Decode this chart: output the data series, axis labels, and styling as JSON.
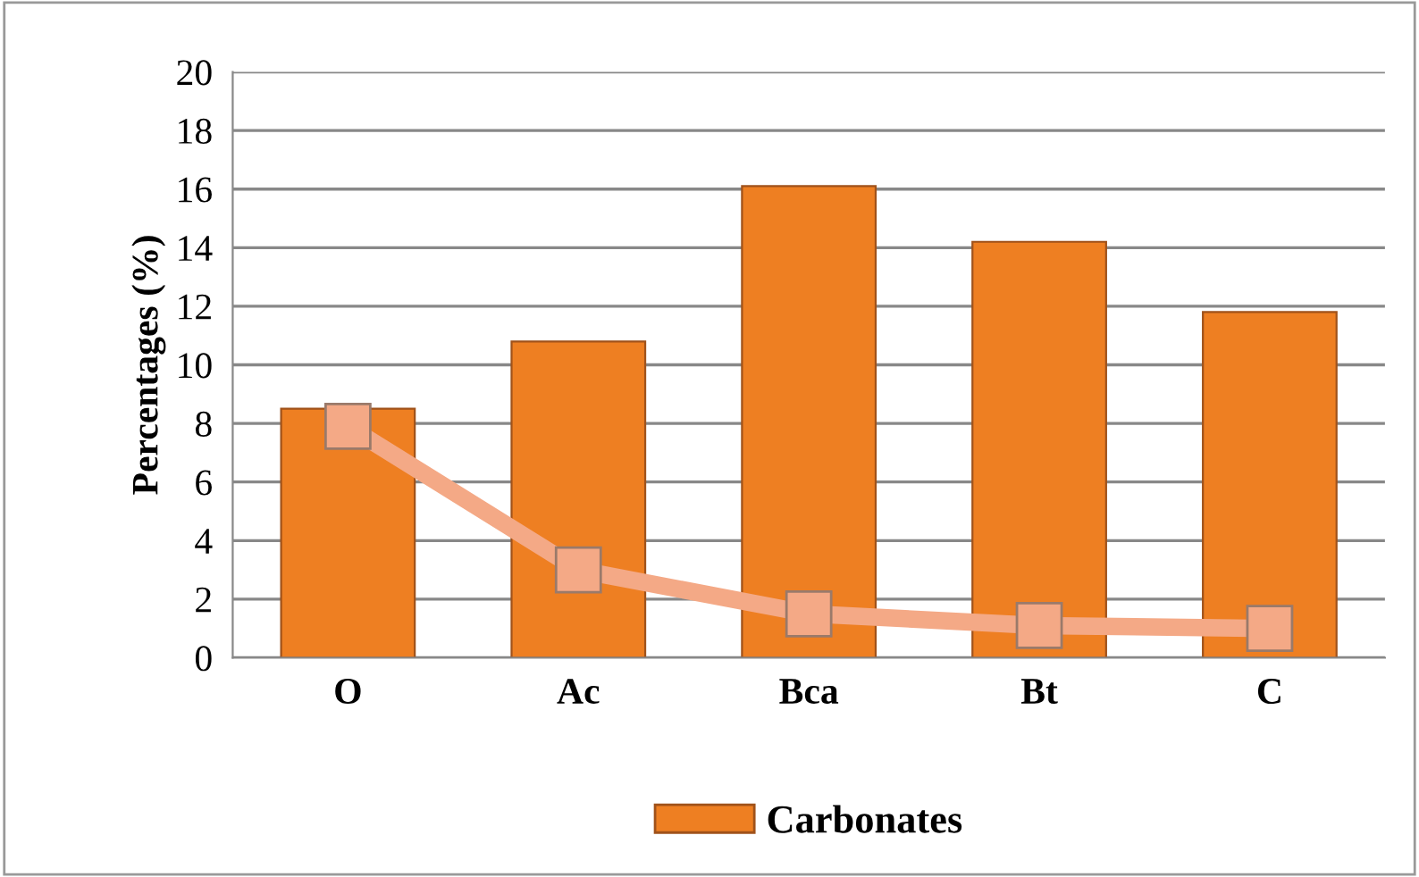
{
  "chart_data": {
    "type": "bar",
    "ylabel": "Percentages (%)",
    "categories": [
      "O",
      "Ac",
      "Bca",
      "Bt",
      "C"
    ],
    "series": [
      {
        "name": "Carbonates",
        "color": "#ee7f22",
        "values": [
          8.5,
          10.8,
          16.1,
          14.2,
          11.8
        ]
      },
      {
        "type": "line",
        "color": "#f4a986",
        "values": [
          7.9,
          3.0,
          1.5,
          1.1,
          1.0
        ],
        "marker": "square"
      }
    ],
    "ylim": [
      0,
      20
    ],
    "yticks": [
      0,
      2,
      4,
      6,
      8,
      10,
      12,
      14,
      16,
      18,
      20
    ],
    "grid": "y",
    "legend": "bottom"
  }
}
